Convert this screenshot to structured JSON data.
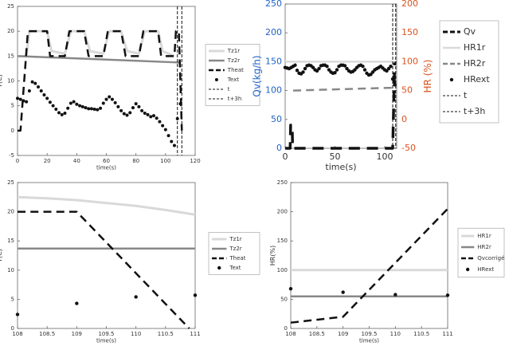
{
  "chart_data": [
    {
      "type": "line",
      "xlabel": "time(s)",
      "ylabel": "T(C)",
      "xlim": [
        0,
        120
      ],
      "xticks": [
        0,
        20,
        40,
        60,
        80,
        100,
        120
      ],
      "ylim": [
        -5,
        25
      ],
      "yticks": [
        -5,
        0,
        5,
        10,
        15,
        20,
        25
      ],
      "series": [
        {
          "name": "Tz1r",
          "color": "#d9d9d9",
          "style": "solid",
          "width": 3,
          "x": [
            0,
            3,
            6,
            8,
            20,
            23,
            32,
            36,
            45,
            49,
            58,
            62,
            70,
            74,
            82,
            86,
            95,
            98,
            106
          ],
          "values": [
            15,
            15,
            15,
            20,
            20,
            16,
            15.5,
            20,
            20,
            16,
            15.5,
            20,
            20,
            16,
            15.5,
            20,
            20,
            16,
            15
          ]
        },
        {
          "name": "Tz2r",
          "color": "#888888",
          "style": "solid",
          "width": 2.5,
          "x": [
            0,
            110
          ],
          "values": [
            15,
            13.7
          ]
        },
        {
          "name": "Theat",
          "color": "#111111",
          "style": "dashed",
          "width": 2.5,
          "x": [
            0,
            2,
            7,
            20,
            22,
            32,
            35,
            45,
            48,
            58,
            61,
            70,
            73,
            82,
            85,
            95,
            97,
            106,
            107,
            109,
            111
          ],
          "values": [
            0,
            0,
            20,
            20,
            15,
            15,
            20,
            20,
            15,
            15,
            20,
            20,
            15,
            15,
            20,
            20,
            15,
            15,
            20,
            20,
            0
          ]
        },
        {
          "name": "Text",
          "color": "#111111",
          "style": "dots",
          "width": 2,
          "x": [
            0,
            2,
            4,
            6,
            8,
            10,
            12,
            14,
            16,
            18,
            20,
            22,
            24,
            26,
            28,
            30,
            32,
            34,
            36,
            38,
            40,
            42,
            44,
            46,
            48,
            50,
            52,
            54,
            56,
            58,
            60,
            62,
            64,
            66,
            68,
            70,
            72,
            74,
            76,
            78,
            80,
            82,
            84,
            86,
            88,
            90,
            92,
            94,
            96,
            98,
            100,
            102,
            104,
            106,
            108,
            110
          ],
          "values": [
            6.5,
            6.3,
            6,
            5.8,
            8,
            9.8,
            9.5,
            8.8,
            8,
            7.2,
            6.5,
            5.7,
            5,
            4.3,
            3.6,
            3.2,
            3.5,
            4.5,
            5.5,
            5.8,
            5.3,
            5,
            4.8,
            4.6,
            4.4,
            4.4,
            4.3,
            4.2,
            4.5,
            5.5,
            6.3,
            6.8,
            6.3,
            5.6,
            4.8,
            4,
            3.4,
            3.1,
            3.6,
            4.6,
            5.4,
            4.8,
            4,
            3.5,
            3.2,
            2.8,
            3,
            2.5,
            1.8,
            1,
            0.2,
            -1,
            -2.2,
            -3,
            2.4,
            5.4
          ]
        },
        {
          "name": "t",
          "color": "#111111",
          "style": "dashed",
          "width": 1,
          "x": 108
        },
        {
          "name": "t+3h",
          "color": "#111111",
          "style": "dashed",
          "width": 1,
          "x": 111
        }
      ]
    },
    {
      "type": "line",
      "xlabel": "time(s)",
      "ylabel": "Qv(kg/h)",
      "y2label": "HR (%)",
      "y_color": "#1f63c6",
      "y2_color": "#d9531e",
      "xlim": [
        0,
        112
      ],
      "xticks": [
        0,
        50,
        100
      ],
      "ylim": [
        0,
        250
      ],
      "yticks": [
        0,
        50,
        100,
        150,
        200,
        250
      ],
      "y2lim": [
        -50,
        200
      ],
      "y2ticks": [
        -50,
        0,
        50,
        100,
        150,
        200
      ],
      "series": [
        {
          "name": "Qv",
          "color": "#111111",
          "style": "dashed",
          "width": 3.5,
          "x": [
            0,
            5,
            5.5,
            7,
            7.5,
            108,
            110
          ],
          "values": [
            0,
            0,
            40,
            40,
            0,
            0,
            150
          ]
        },
        {
          "name": "HR1r",
          "color": "#d9d9d9",
          "style": "solid",
          "width": 2.5,
          "axis": "y2",
          "x": [
            0,
            110
          ],
          "values": [
            100,
            100
          ]
        },
        {
          "name": "HR2r",
          "color": "#888888",
          "style": "dashed",
          "width": 2.5,
          "axis": "y2",
          "x": [
            8,
            110
          ],
          "values": [
            50,
            55
          ]
        },
        {
          "name": "HRext",
          "color": "#111111",
          "style": "dots",
          "width": 2.2,
          "axis": "y2",
          "x": [
            0,
            2,
            4,
            6,
            8,
            10,
            12,
            14,
            16,
            18,
            20,
            22,
            24,
            26,
            28,
            30,
            32,
            34,
            36,
            38,
            40,
            42,
            44,
            46,
            48,
            50,
            52,
            54,
            56,
            58,
            60,
            62,
            64,
            66,
            68,
            70,
            72,
            74,
            76,
            78,
            80,
            82,
            84,
            86,
            88,
            90,
            92,
            94,
            96,
            98,
            100,
            102,
            104,
            106,
            108,
            110
          ],
          "values": [
            90,
            89,
            88,
            90,
            92,
            94,
            85,
            80,
            79,
            82,
            88,
            93,
            94,
            93,
            90,
            86,
            84,
            88,
            93,
            94,
            94,
            92,
            86,
            82,
            80,
            81,
            86,
            92,
            94,
            94,
            93,
            88,
            84,
            82,
            83,
            86,
            90,
            93,
            94,
            92,
            86,
            80,
            77,
            78,
            82,
            86,
            88,
            90,
            92,
            89,
            86,
            84,
            88,
            92,
            70,
            60
          ]
        },
        {
          "name": "t",
          "color": "#111111",
          "style": "dashed",
          "width": 1,
          "x": 108
        },
        {
          "name": "t+3h",
          "color": "#111111",
          "style": "dashed",
          "width": 1,
          "x": 111
        }
      ]
    },
    {
      "type": "line",
      "xlabel": "time(s)",
      "ylabel": "T(C)",
      "xlim": [
        108,
        111
      ],
      "xticks": [
        108,
        108.5,
        109,
        109.5,
        110,
        110.5,
        111
      ],
      "ylim": [
        0,
        25
      ],
      "yticks": [
        0,
        5,
        10,
        15,
        20,
        25
      ],
      "series": [
        {
          "name": "Tz1r",
          "color": "#d9d9d9",
          "style": "solid",
          "width": 3,
          "x": [
            108,
            108.5,
            109,
            109.5,
            110,
            110.5,
            111
          ],
          "values": [
            22.5,
            22.3,
            22,
            21.5,
            21,
            20.3,
            19.5
          ]
        },
        {
          "name": "Tz2r",
          "color": "#888888",
          "style": "solid",
          "width": 2.5,
          "x": [
            108,
            111
          ],
          "values": [
            13.7,
            13.7
          ]
        },
        {
          "name": "Theat",
          "color": "#111111",
          "style": "dashed",
          "width": 2.5,
          "x": [
            108,
            109,
            110.9
          ],
          "values": [
            20,
            20,
            0
          ]
        },
        {
          "name": "Text",
          "color": "#111111",
          "style": "dots",
          "width": 2.2,
          "x": [
            108,
            109,
            110,
            111
          ],
          "values": [
            2.4,
            4.3,
            5.4,
            5.7
          ]
        }
      ]
    },
    {
      "type": "line",
      "xlabel": "time(s)",
      "ylabel": "HR(%)",
      "xlim": [
        108,
        111
      ],
      "xticks": [
        108,
        108.5,
        109,
        109.5,
        110,
        110.5,
        111
      ],
      "ylim": [
        0,
        250
      ],
      "yticks": [
        0,
        50,
        100,
        150,
        200,
        250
      ],
      "series": [
        {
          "name": "HR1r",
          "color": "#d9d9d9",
          "style": "solid",
          "width": 3,
          "x": [
            108,
            111
          ],
          "values": [
            100,
            100
          ]
        },
        {
          "name": "HR2r",
          "color": "#888888",
          "style": "solid",
          "width": 2.5,
          "x": [
            108,
            111
          ],
          "values": [
            55,
            55
          ]
        },
        {
          "name": "Qvcorrigé",
          "color": "#111111",
          "style": "dashed",
          "width": 2.5,
          "x": [
            108,
            109,
            111
          ],
          "values": [
            10,
            20,
            205
          ]
        },
        {
          "name": "HRext",
          "color": "#111111",
          "style": "dots",
          "width": 2.2,
          "x": [
            108,
            109,
            110,
            111
          ],
          "values": [
            68,
            62,
            58,
            57
          ]
        }
      ]
    }
  ]
}
